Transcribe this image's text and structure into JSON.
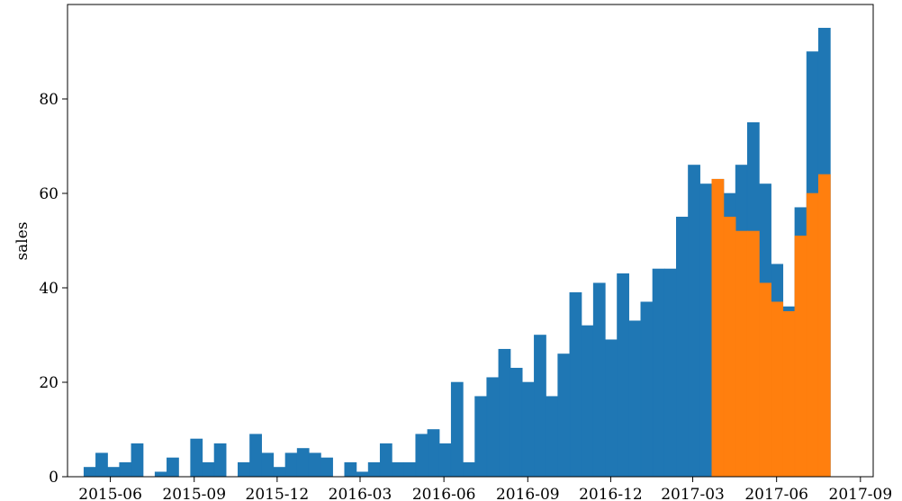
{
  "chart_data": {
    "type": "histogram",
    "ylabel": "sales",
    "bins": [
      "2015-05-03",
      "2015-05-16",
      "2015-05-29",
      "2015-06-11",
      "2015-06-24",
      "2015-07-07",
      "2015-07-20",
      "2015-08-02",
      "2015-08-15",
      "2015-08-28",
      "2015-09-10",
      "2015-09-23",
      "2015-10-06",
      "2015-10-19",
      "2015-11-01",
      "2015-11-14",
      "2015-11-27",
      "2015-12-10",
      "2015-12-23",
      "2016-01-05",
      "2016-01-18",
      "2016-01-31",
      "2016-02-13",
      "2016-02-26",
      "2016-03-10",
      "2016-03-23",
      "2016-04-05",
      "2016-04-18",
      "2016-05-01",
      "2016-05-14",
      "2016-05-27",
      "2016-06-09",
      "2016-06-22",
      "2016-07-05",
      "2016-07-18",
      "2016-07-31",
      "2016-08-13",
      "2016-08-26",
      "2016-09-08",
      "2016-09-21",
      "2016-10-04",
      "2016-10-17",
      "2016-10-30",
      "2016-11-12",
      "2016-11-25",
      "2016-12-08",
      "2016-12-21",
      "2017-01-03",
      "2017-01-16",
      "2017-01-29",
      "2017-02-11",
      "2017-02-24",
      "2017-03-09",
      "2017-03-22",
      "2017-04-04",
      "2017-04-17",
      "2017-04-30",
      "2017-05-13",
      "2017-05-26",
      "2017-06-08",
      "2017-06-21",
      "2017-07-04",
      "2017-07-17",
      "2017-07-30"
    ],
    "series": [
      {
        "color": "#1f77b4",
        "values": [
          2,
          5,
          2,
          3,
          7,
          0,
          1,
          4,
          0,
          8,
          3,
          7,
          0,
          3,
          9,
          5,
          2,
          5,
          6,
          5,
          4,
          0,
          3,
          1,
          3,
          7,
          3,
          3,
          9,
          10,
          7,
          20,
          3,
          17,
          21,
          27,
          23,
          20,
          30,
          17,
          26,
          39,
          32,
          41,
          29,
          43,
          33,
          37,
          44,
          44,
          55,
          66,
          62,
          63,
          60,
          66,
          75,
          62,
          45,
          36,
          57,
          90,
          95
        ]
      },
      {
        "color": "#ff7f0e",
        "values": [
          null,
          null,
          null,
          null,
          null,
          null,
          null,
          null,
          null,
          null,
          null,
          null,
          null,
          null,
          null,
          null,
          null,
          null,
          null,
          null,
          null,
          null,
          null,
          null,
          null,
          null,
          null,
          null,
          null,
          null,
          null,
          null,
          null,
          null,
          null,
          null,
          null,
          null,
          null,
          null,
          null,
          null,
          null,
          null,
          null,
          null,
          null,
          null,
          null,
          null,
          null,
          null,
          null,
          63,
          55,
          52,
          52,
          41,
          37,
          35,
          51,
          60,
          64
        ]
      }
    ],
    "xlim": [
      "2015-04-15",
      "2017-09-15"
    ],
    "xticks": [
      "2015-06",
      "2015-09",
      "2015-12",
      "2016-03",
      "2016-06",
      "2016-09",
      "2016-12",
      "2017-03",
      "2017-06",
      "2017-09"
    ],
    "ylim": [
      0,
      100
    ],
    "yticks": [
      0,
      20,
      40,
      60,
      80
    ]
  }
}
